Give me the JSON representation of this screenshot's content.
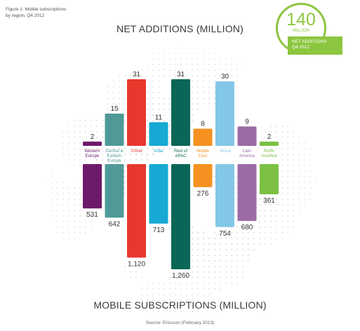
{
  "figure_caption": [
    "Figure 1:  Mobile subscriptions",
    "by region, Q4 2012"
  ],
  "badge": {
    "number": "140",
    "unit": "MILLION",
    "box_lines": [
      "NET ADDITIONS",
      "Q4 2012"
    ],
    "color": "#8cc63f"
  },
  "source": "Source: Ericsson (February 2013)",
  "chart_data": {
    "type": "bar",
    "title": "NET ADDITIONS (MILLION)",
    "subtitle": "MOBILE SUBSCRIPTIONS (MILLION)",
    "categories": [
      [
        "Western",
        "Europe"
      ],
      [
        "Central &",
        "Eastern",
        "Europe"
      ],
      [
        "China"
      ],
      [
        "India"
      ],
      [
        "Rest of",
        "APAC"
      ],
      [
        "Middle",
        "East"
      ],
      [
        "Africa"
      ],
      [
        "Latin",
        "America"
      ],
      [
        "North",
        "America"
      ]
    ],
    "colors": [
      "#6d1a6b",
      "#4f9a97",
      "#e8382e",
      "#15a9d3",
      "#0a6656",
      "#f49121",
      "#82c7e6",
      "#9b6ba6",
      "#7bc043"
    ],
    "series": [
      {
        "name": "NET ADDITIONS (MILLION)",
        "values": [
          2,
          15,
          31,
          11,
          31,
          8,
          30,
          9,
          2
        ],
        "labels": [
          "2",
          "15",
          "31",
          "11",
          "31",
          "8",
          "30",
          "9",
          "2"
        ]
      },
      {
        "name": "MOBILE SUBSCRIPTIONS (MILLION)",
        "values": [
          531,
          642,
          1120,
          713,
          1260,
          276,
          754,
          680,
          361
        ],
        "labels": [
          "531",
          "642",
          "1,120",
          "713",
          "1,260",
          "276",
          "754",
          "680",
          "361"
        ]
      }
    ]
  }
}
